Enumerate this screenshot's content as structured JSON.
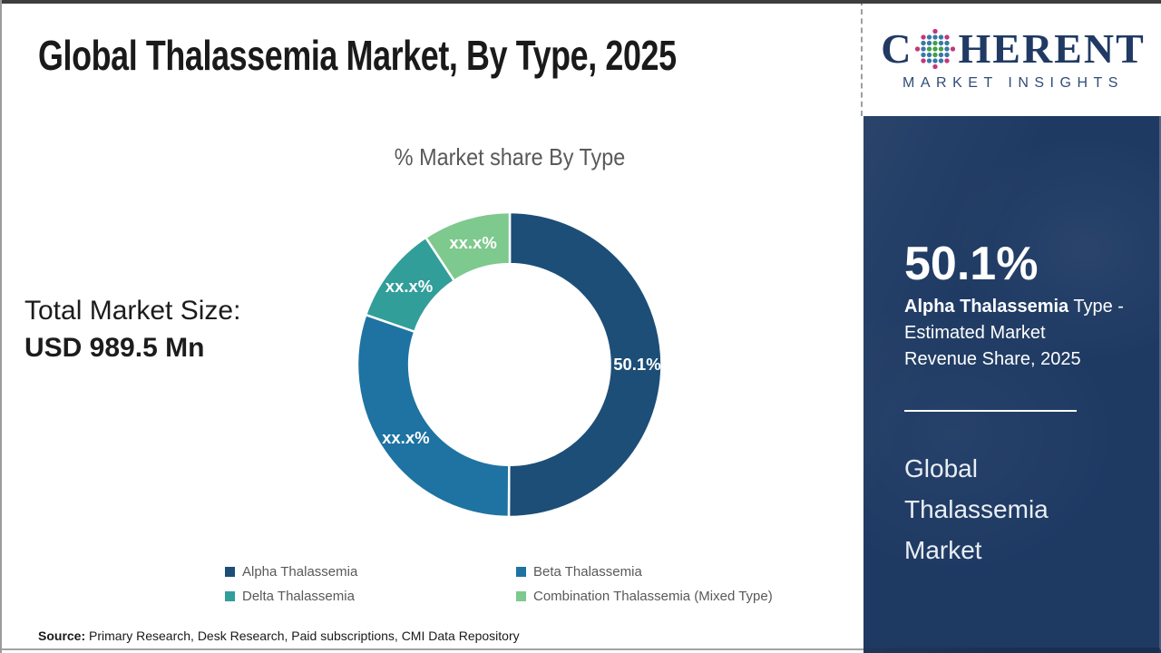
{
  "page": {
    "title": "Global Thalassemia Market, By Type, 2025",
    "source_label": "Source:",
    "source_text": " Primary Research, Desk Research, Paid subscriptions, CMI Data Repository"
  },
  "total_market": {
    "label": "Total Market Size:",
    "value": "USD 989.5 Mn"
  },
  "chart_data": {
    "type": "pie",
    "subtype": "donut",
    "title": "% Market share By Type",
    "categories": [
      "Alpha Thalassemia",
      "Beta Thalassemia",
      "Delta Thalassemia",
      "Combination Thalassemia (Mixed Type)"
    ],
    "values": [
      50.1,
      30.2,
      10.4,
      9.3
    ],
    "display_labels": [
      "50.1%",
      "xx.x%",
      "xx.x%",
      "xx.x%"
    ],
    "values_note": "Only the Alpha Thalassemia share (50.1%) is printed on the chart; other slice labels are masked as xx.x% and their values are estimated from arc angles.",
    "colors": [
      "#1C4E77",
      "#1E73A2",
      "#319E99",
      "#7EC98D"
    ],
    "label_color": "#ffffff",
    "legend_position": "bottom",
    "start_angle_deg": 0,
    "direction": "clockwise",
    "inner_radius_ratio": 0.66
  },
  "sidebar": {
    "logo": {
      "word_start": "C",
      "word_end": "HERENT",
      "subtitle": "MARKET INSIGHTS",
      "globe_colors": {
        "green": "#43A047",
        "blue": "#3878A8",
        "pink": "#C2377C"
      }
    },
    "stat_value": "50.1%",
    "stat_desc": {
      "line1_bold": "Alpha Thalassemia",
      "line1_rest": " Type -",
      "line2": "Estimated Market",
      "line3": "Revenue Share, 2025"
    },
    "panel_title": "Global Thalassemia Market",
    "panel_bg": "#1e3a63"
  }
}
